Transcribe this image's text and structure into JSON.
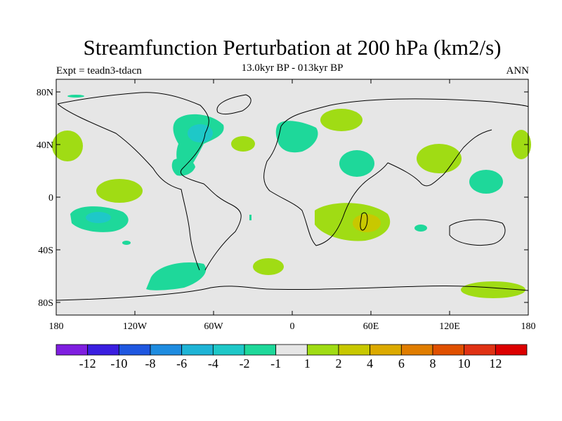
{
  "header": {
    "title": "Streamfunction Perturbation at 200 hPa (km2/s)",
    "subtitle": "13.0kyr BP - 013kyr BP",
    "experiment": "Expt = teadn3-tdacn",
    "season": "ANN"
  },
  "map": {
    "lat_ticks": [
      "80N",
      "40N",
      "0",
      "40S",
      "80S"
    ],
    "lon_ticks": [
      "180",
      "120W",
      "60W",
      "0",
      "60E",
      "120E",
      "180"
    ],
    "background_color": "#e6e6e6"
  },
  "colorbar": {
    "labels": [
      "-12",
      "-10",
      "-8",
      "-6",
      "-4",
      "-2",
      "-1",
      "1",
      "2",
      "4",
      "6",
      "8",
      "10",
      "12"
    ],
    "colors": [
      "#7f1ee0",
      "#3a1ee0",
      "#1f57e0",
      "#1e8ce0",
      "#1eb4d6",
      "#1ec8c8",
      "#1ed89a",
      "#e6e6e6",
      "#a0dc14",
      "#c8c800",
      "#dcaa00",
      "#e07d00",
      "#e05000",
      "#e03214",
      "#dc0000"
    ]
  },
  "contours": {
    "teal_color": "#1ed89a",
    "cyan_color": "#1ec8c8",
    "green_color": "#a0dc14",
    "yellow_color": "#c8c800"
  }
}
